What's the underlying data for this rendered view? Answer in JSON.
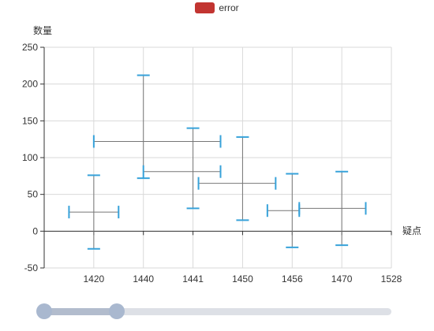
{
  "legend": {
    "label": "error",
    "color": "#c23531"
  },
  "colors": {
    "bar": "#37a2da",
    "cross": "#777777",
    "grid": "#d9d9d9",
    "axis": "#333333"
  },
  "slider": {
    "start_fraction": 0.0,
    "end_fraction": 0.2
  },
  "chart_data": {
    "type": "scatter",
    "xlabel": "疑点",
    "ylabel": "数量",
    "categories": [
      "1420",
      "1440",
      "1441",
      "1450",
      "1456",
      "1470",
      "1528"
    ],
    "ylim": [
      -50,
      250
    ],
    "yticks": [
      -50,
      0,
      50,
      100,
      150,
      200,
      250
    ],
    "grid": true,
    "legend_position": "top",
    "series": [
      {
        "name": "error",
        "points": [
          {
            "x": "1420",
            "x_low": 1410,
            "x_high": 1430,
            "y": 26,
            "y_low": -24,
            "y_high": 76
          },
          {
            "x": "1440",
            "x_low": 1420,
            "x_high": 1446,
            "y": 122,
            "y_low": 72,
            "y_high": 212
          },
          {
            "x": "1441",
            "x_low": 1440,
            "x_high": 1446,
            "y": 81,
            "y_low": 31,
            "y_high": 140
          },
          {
            "x": "1450",
            "x_low": 1442,
            "x_high": 1454,
            "y": 65,
            "y_low": 15,
            "y_high": 128
          },
          {
            "x": "1456",
            "x_low": 1453,
            "x_high": 1458,
            "y": 28,
            "y_low": -22,
            "y_high": 78
          },
          {
            "x": "1470",
            "x_low": 1458,
            "x_high": 1498,
            "y": 31,
            "y_low": -19,
            "y_high": 81
          }
        ]
      }
    ]
  }
}
